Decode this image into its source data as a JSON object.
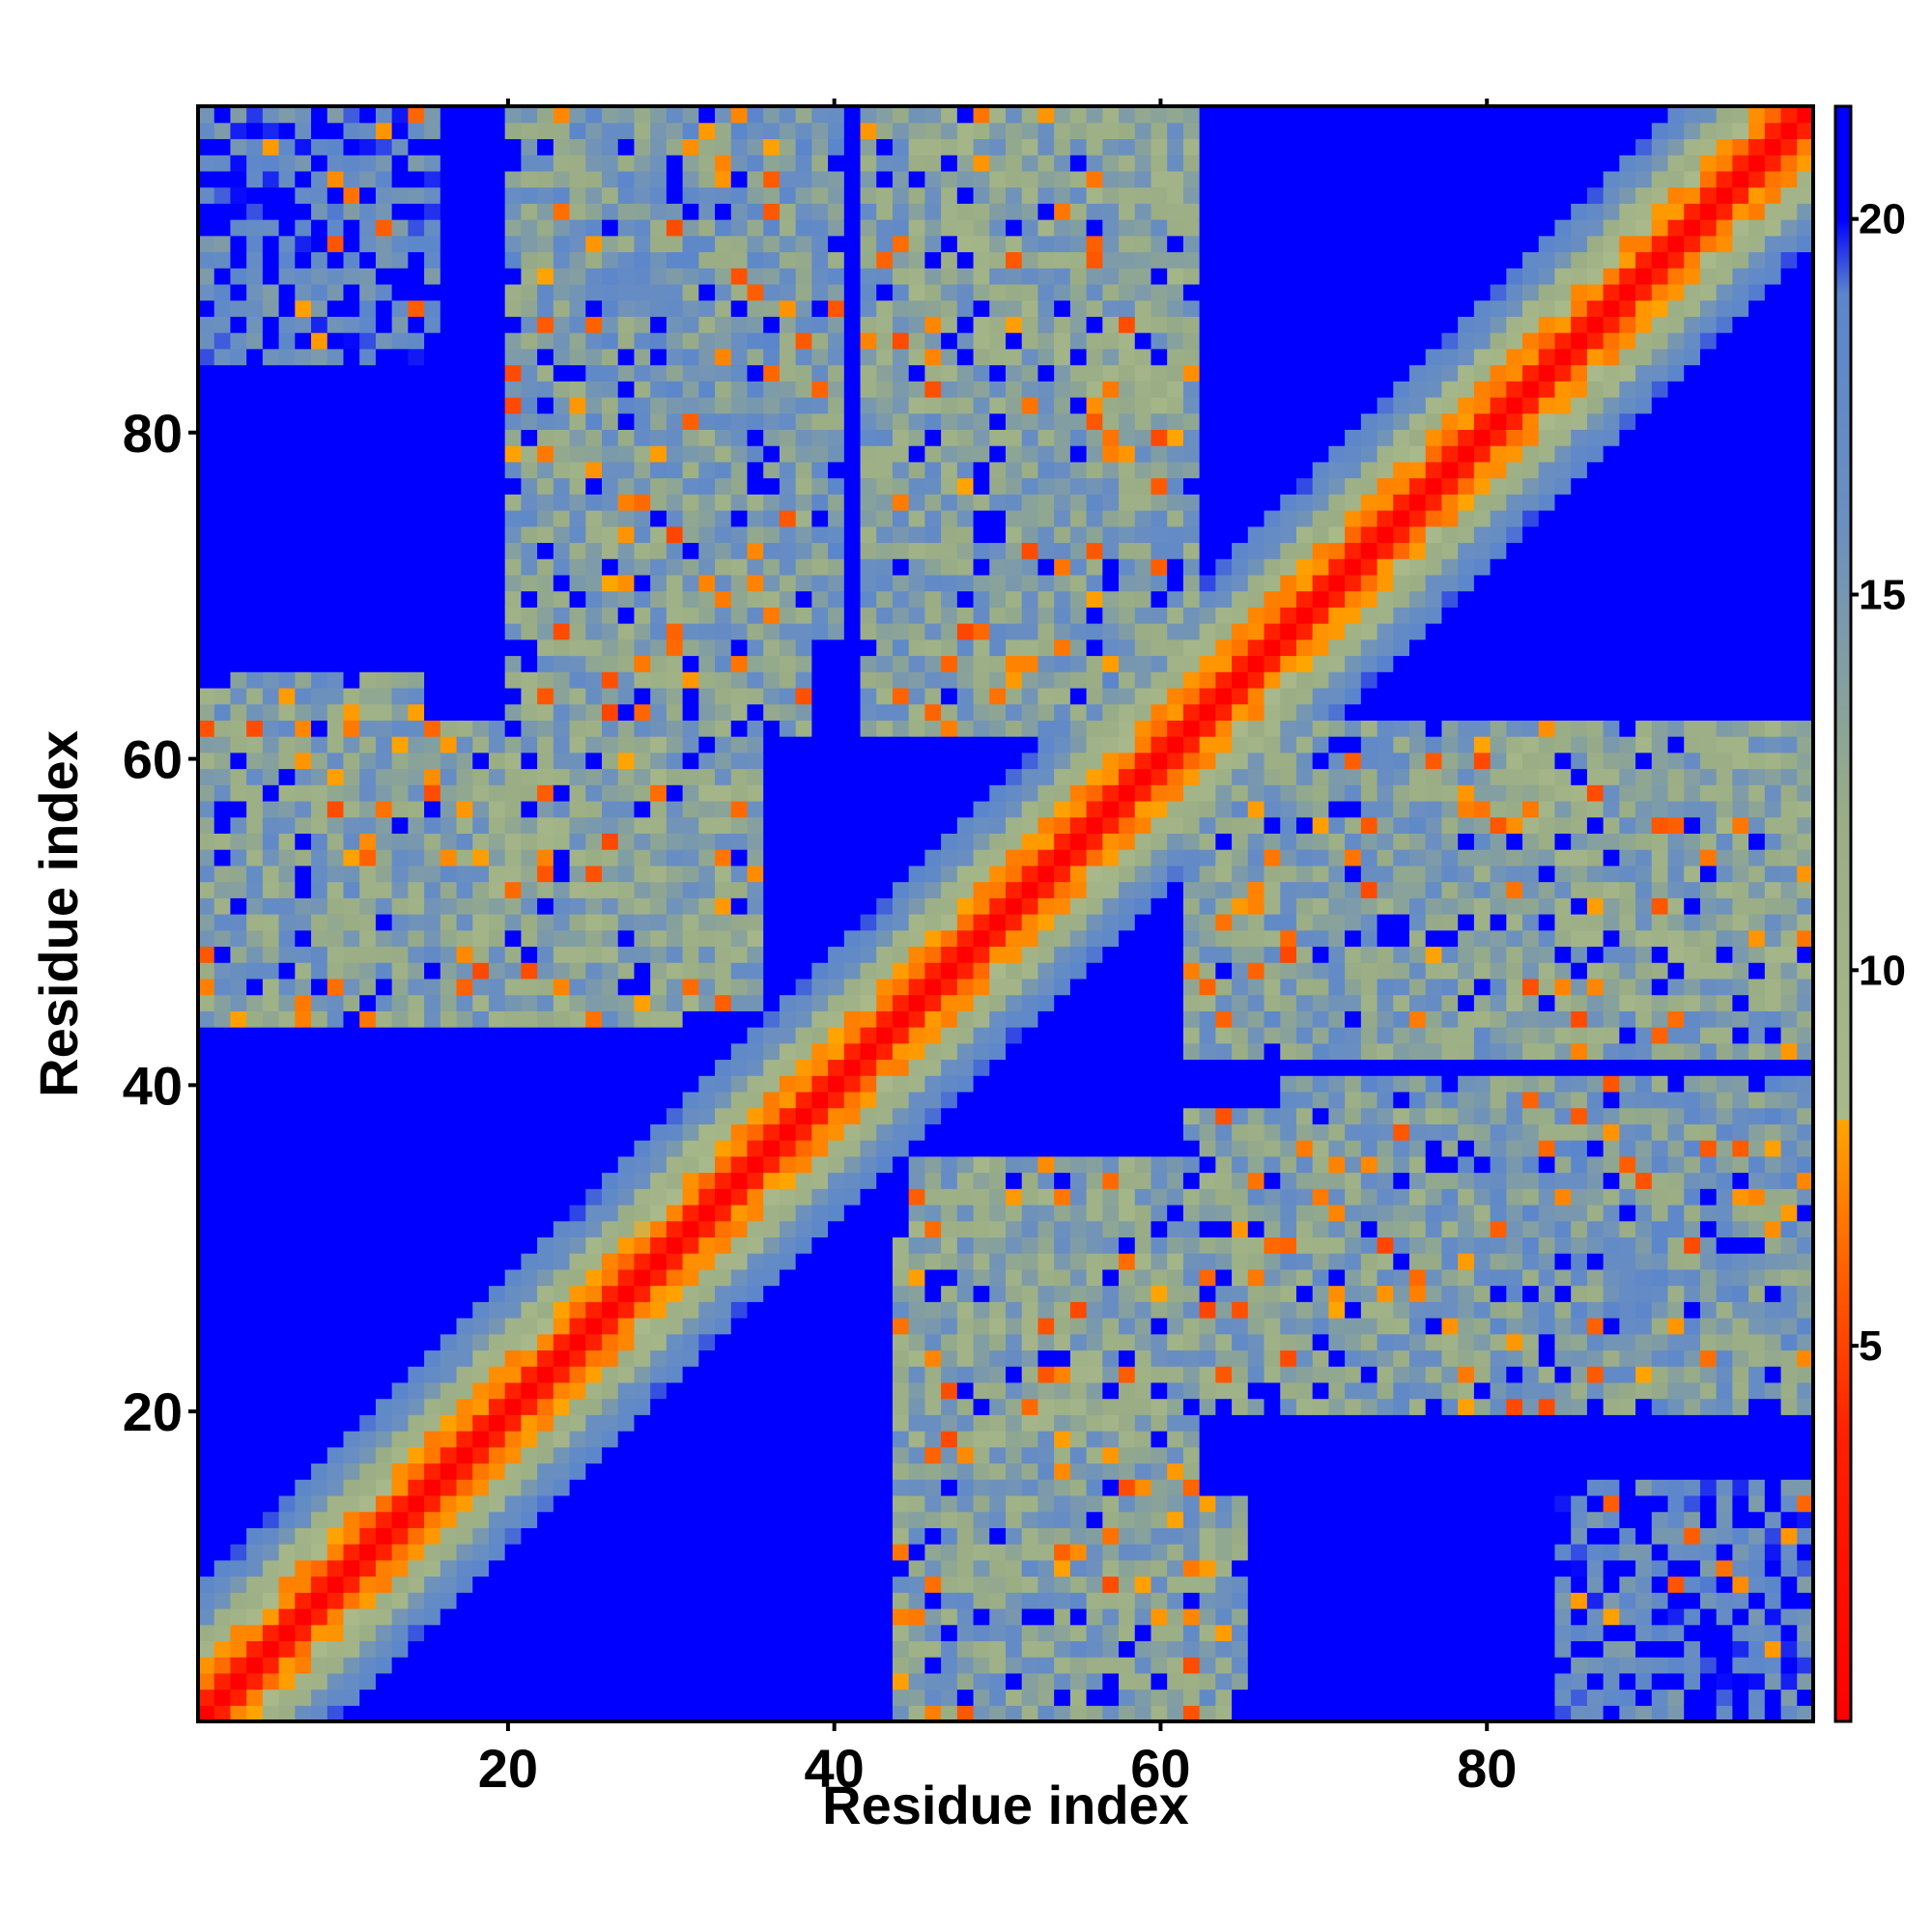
{
  "chart_data": {
    "type": "heatmap",
    "title": "",
    "xlabel": "Residue index",
    "ylabel": "Residue index",
    "n_residues": 100,
    "x_range": [
      1,
      100
    ],
    "y_range": [
      1,
      100
    ],
    "x_ticks": [
      20,
      40,
      60,
      80
    ],
    "y_ticks": [
      20,
      40,
      60,
      80
    ],
    "x_tick_labels": [
      "20",
      "40",
      "60",
      "80"
    ],
    "y_tick_labels": [
      "20",
      "40",
      "60",
      "80"
    ],
    "colorbar": {
      "ticks": [
        5,
        10,
        15,
        20
      ],
      "tick_labels": [
        "5",
        "10",
        "15",
        "20"
      ],
      "range": [
        0,
        21.5
      ],
      "color_stops": [
        {
          "value": 0,
          "color": "#ff0000"
        },
        {
          "value": 3.8,
          "color": "#ff2000"
        },
        {
          "value": 6.0,
          "color": "#ff6000"
        },
        {
          "value": 8.0,
          "color": "#ffa500"
        },
        {
          "value": 8.01,
          "color": "#a9b98a"
        },
        {
          "value": 12.0,
          "color": "#9aad85"
        },
        {
          "value": 16.0,
          "color": "#6a8fc0"
        },
        {
          "value": 19.0,
          "color": "#5b86cc"
        },
        {
          "value": 20.0,
          "color": "#0000ff"
        },
        {
          "value": 21.5,
          "color": "#0000ff"
        }
      ]
    },
    "description_of_values": "Symmetric residue-residue distance map (Å); diagonal ~0, near-diagonal 4–8, contact clusters off-diagonal, far pairs ≥20",
    "off_diagonal_contact_clusters": [
      {
        "i": [
          1,
          14
        ],
        "j": [
          45,
          65
        ],
        "typical": 13
      },
      {
        "i": [
          18,
          35
        ],
        "j": [
          45,
          62
        ],
        "typical": 12
      },
      {
        "i": [
          22,
          34
        ],
        "j": [
          80,
          100
        ],
        "typical": 14
      },
      {
        "i": [
          42,
          62
        ],
        "j": [
          80,
          100
        ],
        "typical": 13
      },
      {
        "i": [
          44,
          62
        ],
        "j": [
          1,
          30
        ],
        "typical": 13
      },
      {
        "i": [
          62,
          80
        ],
        "j": [
          20,
          38
        ],
        "typical": 13
      },
      {
        "i": [
          62,
          100
        ],
        "j": [
          42,
          62
        ],
        "typical": 13
      },
      {
        "i": [
          68,
          100
        ],
        "j": [
          25,
          40
        ],
        "typical": 14
      },
      {
        "i": [
          82,
          100
        ],
        "j": [
          45,
          62
        ],
        "typical": 12
      },
      {
        "i": [
          85,
          100
        ],
        "j": [
          1,
          15
        ],
        "typical": 17
      },
      {
        "i": [
          1,
          15
        ],
        "j": [
          85,
          100
        ],
        "typical": 17
      },
      {
        "i": [
          20,
          38
        ],
        "j": [
          68,
          100
        ],
        "typical": 14
      }
    ]
  },
  "colors": {
    "background": "#ffffff",
    "far": "#0000ff",
    "contact": "#a9b98a",
    "close": "#ff0000"
  }
}
